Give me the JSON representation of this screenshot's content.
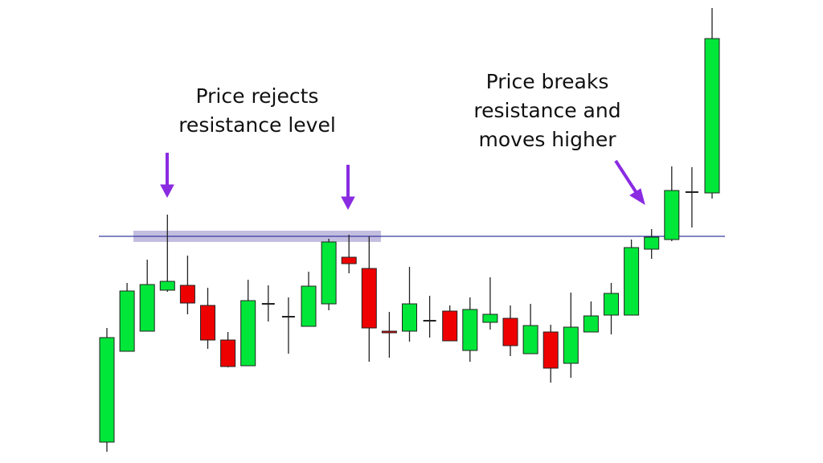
{
  "chart_data": {
    "type": "candlestick",
    "annotations": [
      {
        "lines": [
          "Price rejects",
          "resistance level"
        ]
      },
      {
        "lines": [
          "Price breaks",
          "resistance and",
          "moves higher"
        ]
      }
    ],
    "ylim": [
      0,
      576
    ],
    "resistance": 282,
    "up_color": "#00e639",
    "down_color": "#ee0000",
    "open": [
      26,
      139,
      164,
      215,
      221,
      196,
      153,
      121,
      198,
      182,
      170,
      198,
      256,
      242,
      164,
      164,
      177,
      189,
      140,
      175,
      180,
      136,
      163,
      124,
      163,
      184,
      184,
      266,
      278,
      337,
      336
    ],
    "high": [
      168,
      224,
      253,
      309,
      258,
      218,
      163,
      228,
      221,
      206,
      238,
      279,
      284,
      282,
      188,
      244,
      208,
      196,
      206,
      231,
      196,
      198,
      172,
      212,
      201,
      224,
      278,
      291,
      369,
      368,
      566
    ],
    "low": [
      14,
      139,
      164,
      213,
      185,
      142,
      119,
      121,
      176,
      136,
      170,
      190,
      236,
      126,
      131,
      151,
      156,
      152,
      126,
      166,
      133,
      136,
      100,
      106,
      163,
      160,
      184,
      254,
      276,
      293,
      329
    ],
    "close": [
      156,
      214,
      222,
      226,
      199,
      153,
      120,
      202,
      198,
      182,
      220,
      275,
      248,
      168,
      162,
      198,
      177,
      152,
      191,
      185,
      146,
      171,
      118,
      169,
      183,
      211,
      268,
      281,
      339,
      337,
      528
    ]
  }
}
